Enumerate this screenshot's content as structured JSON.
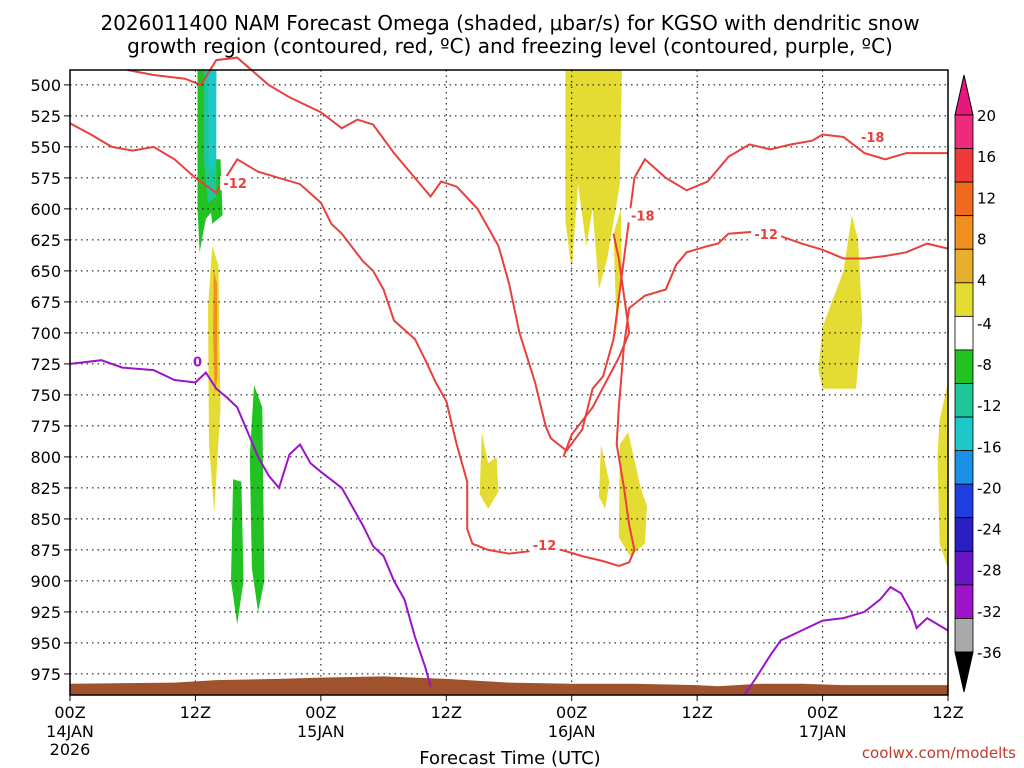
{
  "chart_data": {
    "type": "heatmap",
    "title_line1": "2026011400 NAM Forecast Omega (shaded, μbar/s) for KGSO with dendritic snow",
    "title_line2": "growth region (contoured, red, ºC) and freezing level (contoured, purple, ºC)",
    "xlabel": "Forecast Time (UTC)",
    "credit": "coolwx.com/modelts",
    "x_range_hours": [
      0,
      84
    ],
    "y_range_mb": [
      488,
      992
    ],
    "x_ticks": [
      {
        "hour": 0,
        "top": "00Z",
        "mid": "14JAN",
        "bot": "2026"
      },
      {
        "hour": 12,
        "top": "12Z",
        "mid": "",
        "bot": ""
      },
      {
        "hour": 24,
        "top": "00Z",
        "mid": "15JAN",
        "bot": ""
      },
      {
        "hour": 36,
        "top": "12Z",
        "mid": "",
        "bot": ""
      },
      {
        "hour": 48,
        "top": "00Z",
        "mid": "16JAN",
        "bot": ""
      },
      {
        "hour": 60,
        "top": "12Z",
        "mid": "",
        "bot": ""
      },
      {
        "hour": 72,
        "top": "00Z",
        "mid": "17JAN",
        "bot": ""
      },
      {
        "hour": 84,
        "top": "12Z",
        "mid": "",
        "bot": ""
      }
    ],
    "y_ticks": [
      "500",
      "525",
      "550",
      "575",
      "600",
      "625",
      "650",
      "675",
      "700",
      "725",
      "750",
      "775",
      "800",
      "825",
      "850",
      "875",
      "900",
      "925",
      "950",
      "975"
    ],
    "colorbar": {
      "labels": [
        "20",
        "16",
        "12",
        "8",
        "4",
        "-4",
        "-8",
        "-12",
        "-16",
        "-20",
        "-24",
        "-28",
        "-32",
        "-36"
      ],
      "colors": [
        "#ee2a7b",
        "#f03a3a",
        "#f06b1f",
        "#f0901f",
        "#e6b02e",
        "#e5dc33",
        "#ffffff",
        "#21c221",
        "#1ec79a",
        "#1ec8c8",
        "#1a90e6",
        "#1f3ee0",
        "#2a1fc0",
        "#6a16c6",
        "#9b14c8",
        "#aaaaaa"
      ],
      "top_arrow_color": "#e6197a",
      "bottom_arrow_color": "#000000"
    },
    "omega_regions": [
      {
        "color": "#21c221",
        "pts": [
          [
            12.2,
            488
          ],
          [
            14.0,
            488
          ],
          [
            13.8,
            600
          ],
          [
            13.0,
            608
          ],
          [
            12.4,
            635
          ],
          [
            12.2,
            600
          ]
        ]
      },
      {
        "color": "#21c221",
        "pts": [
          [
            13.0,
            560
          ],
          [
            14.4,
            560
          ],
          [
            14.6,
            605
          ],
          [
            13.6,
            612
          ]
        ]
      },
      {
        "color": "#1ec79a",
        "pts": [
          [
            12.8,
            488
          ],
          [
            14.0,
            488
          ],
          [
            14.0,
            590
          ],
          [
            13.2,
            595
          ],
          [
            12.8,
            560
          ]
        ]
      },
      {
        "color": "#1ec8c8",
        "pts": [
          [
            13.2,
            488
          ],
          [
            14.0,
            488
          ],
          [
            13.9,
            565
          ],
          [
            13.3,
            570
          ]
        ]
      },
      {
        "color": "#21c221",
        "pts": [
          [
            17.6,
            742
          ],
          [
            18.4,
            760
          ],
          [
            18.6,
            900
          ],
          [
            18.0,
            925
          ],
          [
            17.4,
            890
          ],
          [
            17.2,
            800
          ]
        ]
      },
      {
        "color": "#21c221",
        "pts": [
          [
            15.6,
            818
          ],
          [
            16.4,
            820
          ],
          [
            16.6,
            900
          ],
          [
            16.0,
            935
          ],
          [
            15.4,
            900
          ]
        ]
      },
      {
        "color": "#e5dc33",
        "pts": [
          [
            13.6,
            630
          ],
          [
            14.2,
            645
          ],
          [
            14.4,
            760
          ],
          [
            13.8,
            845
          ],
          [
            13.3,
            790
          ],
          [
            13.2,
            680
          ]
        ]
      },
      {
        "color": "#f0901f",
        "pts": [
          [
            13.75,
            650
          ],
          [
            14.05,
            660
          ],
          [
            14.1,
            735
          ],
          [
            13.85,
            750
          ],
          [
            13.7,
            700
          ]
        ]
      },
      {
        "color": "#e5dc33",
        "pts": [
          [
            47.4,
            488
          ],
          [
            52.8,
            488
          ],
          [
            52.6,
            580
          ],
          [
            51.4,
            640
          ],
          [
            50.6,
            665
          ],
          [
            50.0,
            600
          ],
          [
            49.4,
            630
          ],
          [
            48.6,
            580
          ],
          [
            48.0,
            650
          ],
          [
            47.4,
            610
          ]
        ]
      },
      {
        "color": "#e5dc33",
        "pts": [
          [
            52.0,
            620
          ],
          [
            52.7,
            600
          ],
          [
            52.8,
            650
          ],
          [
            52.3,
            700
          ]
        ]
      },
      {
        "color": "#e5dc33",
        "pts": [
          [
            39.4,
            780
          ],
          [
            40.0,
            805
          ],
          [
            40.8,
            800
          ],
          [
            41.0,
            828
          ],
          [
            40.0,
            842
          ],
          [
            39.2,
            830
          ]
        ]
      },
      {
        "color": "#e5dc33",
        "pts": [
          [
            50.8,
            790
          ],
          [
            51.6,
            820
          ],
          [
            51.2,
            842
          ],
          [
            50.6,
            832
          ]
        ]
      },
      {
        "color": "#e5dc33",
        "pts": [
          [
            52.6,
            790
          ],
          [
            53.4,
            780
          ],
          [
            54.6,
            825
          ],
          [
            55.2,
            840
          ],
          [
            55.0,
            870
          ],
          [
            53.6,
            880
          ],
          [
            52.5,
            865
          ]
        ]
      },
      {
        "color": "#e5dc33",
        "pts": [
          [
            72.0,
            695
          ],
          [
            74.0,
            650
          ],
          [
            74.8,
            605
          ],
          [
            75.4,
            625
          ],
          [
            75.8,
            690
          ],
          [
            75.2,
            745
          ],
          [
            72.0,
            745
          ],
          [
            71.6,
            730
          ]
        ]
      },
      {
        "color": "#e5dc33",
        "pts": [
          [
            84.0,
            740
          ],
          [
            84.0,
            890
          ],
          [
            83.2,
            870
          ],
          [
            83.0,
            800
          ],
          [
            83.2,
            770
          ]
        ]
      }
    ],
    "red_contours": [
      {
        "label": "-18",
        "label_at": [
          76.0,
          545
        ],
        "pts": [
          [
            5.5,
            488
          ],
          [
            8,
            492
          ],
          [
            11,
            495
          ],
          [
            12.5,
            500
          ],
          [
            14,
            480
          ],
          [
            16,
            478
          ],
          [
            19,
            500
          ],
          [
            21,
            510
          ],
          [
            24,
            522
          ],
          [
            26,
            535
          ],
          [
            27.5,
            528
          ],
          [
            29,
            532
          ],
          [
            31,
            555
          ],
          [
            33,
            575
          ],
          [
            34.5,
            590
          ],
          [
            35.5,
            578
          ],
          [
            37,
            582
          ],
          [
            39,
            600
          ],
          [
            41,
            630
          ],
          [
            42,
            660
          ],
          [
            43,
            700
          ],
          [
            44.5,
            740
          ],
          [
            45.5,
            775
          ],
          [
            46,
            785
          ],
          [
            47.5,
            795
          ],
          [
            49,
            778
          ],
          [
            50,
            745
          ],
          [
            51,
            735
          ],
          [
            52,
            705
          ],
          [
            53,
            640
          ],
          [
            54,
            575
          ],
          [
            55,
            560
          ],
          [
            57,
            575
          ],
          [
            59,
            585
          ],
          [
            61,
            578
          ],
          [
            63,
            558
          ],
          [
            65,
            548
          ],
          [
            67,
            552
          ],
          [
            69,
            548
          ],
          [
            71,
            545
          ],
          [
            72,
            540
          ],
          [
            74,
            542
          ],
          [
            76,
            555
          ],
          [
            78,
            560
          ],
          [
            80,
            555
          ],
          [
            82,
            555
          ],
          [
            84,
            555
          ]
        ]
      },
      {
        "label": "-12",
        "label_at": [
          16.0,
          578
        ],
        "pts": [
          [
            0,
            531
          ],
          [
            2,
            540
          ],
          [
            4,
            550
          ],
          [
            6,
            553
          ],
          [
            8,
            550
          ],
          [
            10,
            560
          ],
          [
            12,
            575
          ],
          [
            14,
            587
          ],
          [
            16,
            560
          ],
          [
            18,
            570
          ],
          [
            20,
            575
          ],
          [
            22,
            580
          ],
          [
            24,
            595
          ],
          [
            25,
            612
          ],
          [
            26,
            620
          ],
          [
            28,
            642
          ],
          [
            29,
            650
          ],
          [
            30,
            665
          ],
          [
            31,
            690
          ],
          [
            33,
            705
          ],
          [
            34,
            722
          ],
          [
            35,
            740
          ],
          [
            36,
            755
          ],
          [
            37,
            790
          ],
          [
            38,
            820
          ],
          [
            38,
            858
          ],
          [
            38.5,
            870
          ],
          [
            40,
            875
          ],
          [
            42,
            878
          ],
          [
            44,
            876
          ],
          [
            45,
            874
          ],
          [
            47,
            875
          ],
          [
            49,
            880
          ],
          [
            51,
            884
          ],
          [
            52.5,
            888
          ],
          [
            53.5,
            885
          ],
          [
            54,
            875
          ],
          [
            53.5,
            855
          ],
          [
            53,
            825
          ],
          [
            52.3,
            790
          ],
          [
            52.5,
            760
          ],
          [
            53,
            710
          ],
          [
            53.5,
            680
          ],
          [
            55,
            670
          ],
          [
            57,
            665
          ],
          [
            58,
            645
          ],
          [
            59,
            635
          ],
          [
            61,
            630
          ],
          [
            62,
            628
          ],
          [
            63,
            620
          ],
          [
            66,
            618
          ],
          [
            68,
            622
          ],
          [
            70,
            628
          ],
          [
            72,
            633
          ],
          [
            74,
            640
          ],
          [
            76,
            640
          ],
          [
            78,
            638
          ],
          [
            80,
            635
          ],
          [
            82,
            628
          ],
          [
            84,
            632
          ]
        ]
      },
      {
        "label": "-18",
        "label_at": [
          55.0,
          606
        ],
        "pts": [
          [
            52,
            620
          ],
          [
            52.5,
            640
          ],
          [
            53,
            670
          ],
          [
            53.5,
            700
          ],
          [
            52.5,
            720
          ],
          [
            50,
            760
          ],
          [
            48,
            782
          ],
          [
            47.2,
            800
          ]
        ]
      }
    ],
    "red_labels": [
      {
        "text": "-12",
        "at": [
          15.8,
          580
        ]
      },
      {
        "text": "-18",
        "at": [
          54.8,
          606
        ]
      },
      {
        "text": "-12",
        "at": [
          66.6,
          621
        ]
      },
      {
        "text": "-12",
        "at": [
          45.4,
          872
        ]
      },
      {
        "text": "-18",
        "at": [
          76.8,
          543
        ]
      }
    ],
    "purple_contour": {
      "label": "0",
      "label_at": [
        12.2,
        724
      ],
      "pts": [
        [
          0,
          725
        ],
        [
          3,
          722
        ],
        [
          5,
          728
        ],
        [
          8,
          730
        ],
        [
          10,
          738
        ],
        [
          12,
          740
        ],
        [
          13,
          732
        ],
        [
          14,
          745
        ],
        [
          15,
          752
        ],
        [
          16,
          760
        ],
        [
          17,
          780
        ],
        [
          18,
          800
        ],
        [
          19,
          815
        ],
        [
          20,
          825
        ],
        [
          21,
          798
        ],
        [
          22,
          790
        ],
        [
          23,
          805
        ],
        [
          24,
          812
        ],
        [
          26,
          825
        ],
        [
          27,
          840
        ],
        [
          28,
          855
        ],
        [
          29,
          872
        ],
        [
          30,
          880
        ],
        [
          31,
          900
        ],
        [
          32,
          915
        ],
        [
          33,
          945
        ],
        [
          34,
          970
        ],
        [
          34.5,
          985
        ]
      ]
    },
    "purple_contour2": {
      "pts": [
        [
          64.5,
          992
        ],
        [
          65.5,
          980
        ],
        [
          67,
          960
        ],
        [
          68,
          948
        ],
        [
          70,
          940
        ],
        [
          72,
          932
        ],
        [
          74,
          930
        ],
        [
          76,
          925
        ],
        [
          77.5,
          915
        ],
        [
          78.5,
          905
        ],
        [
          79.5,
          910
        ],
        [
          80.5,
          925
        ],
        [
          81,
          938
        ],
        [
          82,
          930
        ],
        [
          84,
          940
        ]
      ]
    },
    "terrain": {
      "color": "#a0522d",
      "top_mb": [
        [
          0,
          983
        ],
        [
          10,
          982
        ],
        [
          14,
          980
        ],
        [
          20,
          979
        ],
        [
          24,
          978
        ],
        [
          30,
          977
        ],
        [
          36,
          979
        ],
        [
          42,
          982
        ],
        [
          48,
          983
        ],
        [
          54,
          983
        ],
        [
          60,
          984
        ],
        [
          62,
          985
        ],
        [
          66,
          983
        ],
        [
          70,
          983
        ],
        [
          74,
          984
        ],
        [
          80,
          984
        ],
        [
          84,
          984
        ]
      ]
    }
  }
}
